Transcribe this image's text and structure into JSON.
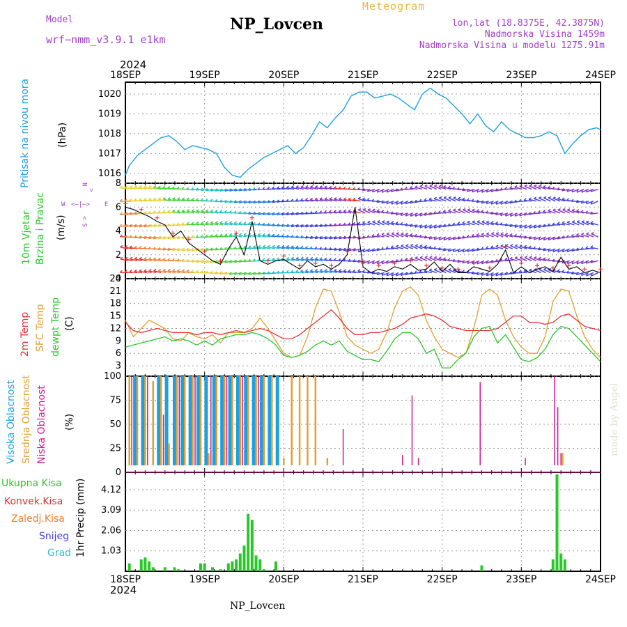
{
  "header": {
    "model_label": "Model",
    "model_name": "wrf−nmm_v3.9.1  e1km",
    "title": "NP_Lovcen",
    "meteogram_label": "Meteogram",
    "lonlat": "lon,lat (18.8375E, 42.3875N)",
    "elevation": "Nadmorska Visina 1459m",
    "model_elevation": "Nadmorska Visina u modelu 1275.91m",
    "year_top": "2024",
    "year_bottom": "2024",
    "footer": "NP_Lovcen",
    "watermark": "made by Angel"
  },
  "x_dates": [
    "18SEP",
    "19SEP",
    "20SEP",
    "21SEP",
    "22SEP",
    "23SEP",
    "24SEP"
  ],
  "panels": {
    "pressure": {
      "label": "Pritisak na nivou mora",
      "unit": "(hPa)"
    },
    "wind": {
      "label1": "10m Vjetar",
      "label2": "Brzina i Pravac",
      "unit": "(m/s)",
      "compass": {
        "n": "N",
        "s": "S",
        "e": "E",
        "w": "W"
      }
    },
    "temp": {
      "label_t2m": "2m Temp",
      "label_sfc": "SFC Temp",
      "label_dew": "dewpt Temp",
      "unit": "(C)"
    },
    "cloud": {
      "label_high": "Visoka Oblacnost",
      "label_mid": "Srednja Oblacnost",
      "label_low": "Niska Oblacnost",
      "unit": "(%)"
    },
    "precip": {
      "unit": "1hr Precip (mm)",
      "legend": [
        "Ukupna Kisa",
        "Konvek.Kisa",
        "Zaledj.Kisa",
        "Snijeg",
        "Grad"
      ]
    }
  },
  "colors": {
    "pressure": "#1ea0e0",
    "t2m": "#e83030",
    "sfc": "#e0a030",
    "dew": "#28c828",
    "high": "#1ea0e0",
    "mid": "#e0a030",
    "low": "#d01890",
    "precip_total": "#28c828",
    "precip_conv": "#e83030",
    "precip_frz": "#f08030",
    "precip_snow": "#4040e0",
    "precip_hail": "#30c0c0",
    "magenta": "#a040c8"
  },
  "chart_data": [
    {
      "type": "line",
      "title": "Pritisak na nivou mora",
      "ylabel": "(hPa)",
      "ylim": [
        1015.5,
        1020.6
      ],
      "yticks": [
        1016,
        1017,
        1018,
        1019,
        1020
      ],
      "x_days": [
        0,
        0.05,
        0.15,
        0.25,
        0.35,
        0.45,
        0.55,
        0.65,
        0.75,
        0.85,
        0.95,
        1.05,
        1.15,
        1.25,
        1.35,
        1.45,
        1.55,
        1.65,
        1.75,
        1.85,
        1.95,
        2.05,
        2.15,
        2.25,
        2.35,
        2.45,
        2.55,
        2.65,
        2.75,
        2.85,
        2.95,
        3.05,
        3.15,
        3.25,
        3.35,
        3.45,
        3.55,
        3.65,
        3.75,
        3.85,
        3.95,
        4.05,
        4.15,
        4.25,
        4.35,
        4.45,
        4.55,
        4.65,
        4.75,
        4.85,
        4.95,
        5.05,
        5.15,
        5.25,
        5.35,
        5.45,
        5.55,
        5.65,
        5.75,
        5.85,
        5.95,
        6.0
      ],
      "series": [
        {
          "values": [
            1015.9,
            1016.4,
            1016.9,
            1017.2,
            1017.5,
            1017.8,
            1017.9,
            1017.6,
            1017.2,
            1017.4,
            1017.3,
            1017.2,
            1017.0,
            1016.3,
            1015.9,
            1015.8,
            1016.2,
            1016.5,
            1016.8,
            1017.0,
            1017.2,
            1017.4,
            1017.0,
            1017.3,
            1017.9,
            1018.6,
            1018.3,
            1018.8,
            1019.2,
            1019.9,
            1020.1,
            1020.1,
            1019.8,
            1019.9,
            1020.0,
            1019.8,
            1019.5,
            1019.2,
            1020.0,
            1020.3,
            1020.0,
            1019.8,
            1019.4,
            1019.0,
            1018.5,
            1019.0,
            1018.4,
            1018.1,
            1018.6,
            1018.2,
            1018.0,
            1017.8,
            1017.8,
            1017.9,
            1018.1,
            1017.9,
            1017.0,
            1017.5,
            1017.9,
            1018.2,
            1018.3,
            1018.2
          ]
        }
      ]
    },
    {
      "type": "line",
      "title": "10m Vjetar Brzina i Pravac",
      "ylabel": "(m/s)",
      "ylim": [
        0,
        8
      ],
      "yticks": [
        0,
        2,
        4,
        6,
        8
      ],
      "x_days": [
        0,
        0.1,
        0.2,
        0.3,
        0.4,
        0.5,
        0.6,
        0.7,
        0.8,
        0.9,
        1.0,
        1.1,
        1.2,
        1.3,
        1.4,
        1.5,
        1.6,
        1.7,
        1.8,
        1.9,
        2.0,
        2.1,
        2.2,
        2.3,
        2.4,
        2.5,
        2.6,
        2.7,
        2.8,
        2.9,
        3.0,
        3.1,
        3.2,
        3.3,
        3.4,
        3.5,
        3.6,
        3.7,
        3.8,
        3.9,
        4.0,
        4.1,
        4.2,
        4.3,
        4.4,
        4.5,
        4.6,
        4.7,
        4.8,
        4.9,
        5.0,
        5.1,
        5.2,
        5.3,
        5.4,
        5.5,
        5.6,
        5.7,
        5.8,
        5.9,
        6.0
      ],
      "series": [
        {
          "name": "speed",
          "values": [
            6.0,
            5.8,
            5.5,
            5.2,
            4.8,
            4.5,
            3.5,
            4.0,
            3.0,
            2.5,
            2.0,
            1.5,
            1.2,
            2.5,
            3.5,
            2.0,
            4.8,
            1.5,
            1.2,
            1.5,
            1.6,
            1.2,
            0.8,
            1.5,
            1.0,
            1.2,
            0.8,
            1.2,
            2.0,
            6.0,
            1.0,
            0.5,
            0.8,
            0.6,
            1.0,
            0.8,
            1.2,
            0.7,
            0.8,
            1.4,
            0.6,
            1.2,
            0.5,
            0.5,
            1.0,
            0.8,
            0.6,
            1.2,
            2.4,
            0.5,
            1.0,
            0.5,
            0.8,
            1.0,
            0.6,
            1.8,
            0.8,
            1.0,
            0.5,
            0.7,
            0.5
          ]
        }
      ]
    },
    {
      "type": "line",
      "title": "2m Temp / SFC Temp / dewpt Temp",
      "ylabel": "(C)",
      "ylim": [
        0.5,
        24
      ],
      "yticks": [
        3,
        6,
        9,
        12,
        15,
        18,
        21,
        24
      ],
      "x_days": [
        0,
        0.1,
        0.2,
        0.3,
        0.4,
        0.5,
        0.6,
        0.7,
        0.8,
        0.9,
        1.0,
        1.1,
        1.2,
        1.3,
        1.4,
        1.5,
        1.6,
        1.7,
        1.8,
        1.9,
        2.0,
        2.1,
        2.2,
        2.3,
        2.4,
        2.5,
        2.6,
        2.7,
        2.8,
        2.9,
        3.0,
        3.1,
        3.2,
        3.3,
        3.4,
        3.5,
        3.6,
        3.7,
        3.8,
        3.9,
        4.0,
        4.1,
        4.2,
        4.3,
        4.4,
        4.5,
        4.6,
        4.7,
        4.8,
        4.9,
        5.0,
        5.1,
        5.2,
        5.3,
        5.4,
        5.5,
        5.6,
        5.7,
        5.8,
        5.9,
        6.0
      ],
      "series": [
        {
          "name": "2m Temp",
          "values": [
            13.5,
            11.5,
            11.0,
            11.5,
            12.0,
            11.5,
            11.0,
            11.0,
            11.0,
            10.5,
            11.0,
            11.0,
            10.5,
            11.0,
            11.5,
            11.0,
            11.5,
            12.0,
            11.5,
            10.5,
            9.5,
            9.5,
            10.5,
            12.0,
            13.5,
            15.0,
            16.5,
            14.5,
            12.0,
            10.5,
            10.5,
            11.0,
            11.0,
            11.5,
            12.0,
            13.0,
            14.5,
            15.0,
            15.5,
            15.0,
            14.0,
            12.5,
            12.0,
            11.5,
            11.5,
            11.5,
            11.5,
            12.0,
            13.5,
            15.0,
            15.0,
            13.5,
            13.5,
            13.0,
            13.5,
            15.0,
            15.5,
            14.0,
            12.5,
            12.0,
            11.5
          ]
        },
        {
          "name": "SFC Temp",
          "values": [
            14.0,
            10.0,
            12.0,
            14.0,
            13.0,
            12.0,
            9.5,
            9.0,
            11.0,
            10.0,
            9.5,
            10.5,
            8.5,
            11.0,
            11.0,
            11.0,
            12.0,
            14.5,
            12.0,
            9.0,
            6.0,
            5.0,
            5.5,
            10.0,
            17.0,
            21.5,
            21.0,
            16.0,
            10.0,
            8.0,
            7.0,
            6.0,
            7.0,
            11.0,
            17.0,
            21.0,
            22.0,
            20.0,
            14.0,
            10.0,
            7.0,
            6.0,
            5.0,
            6.0,
            12.0,
            20.0,
            21.5,
            20.0,
            14.0,
            10.0,
            7.5,
            6.0,
            6.0,
            10.0,
            18.5,
            21.5,
            21.0,
            15.0,
            10.0,
            7.0,
            5.0
          ]
        },
        {
          "name": "dewpt Temp",
          "values": [
            7.5,
            8.0,
            8.5,
            9.0,
            9.5,
            10.0,
            9.0,
            9.5,
            9.0,
            8.0,
            9.0,
            8.0,
            9.5,
            10.0,
            10.5,
            10.5,
            11.0,
            10.5,
            9.5,
            8.0,
            5.5,
            5.0,
            5.5,
            6.5,
            8.0,
            9.0,
            8.0,
            9.0,
            6.5,
            5.5,
            4.5,
            4.5,
            4.0,
            6.5,
            9.5,
            11.0,
            11.0,
            9.5,
            6.0,
            7.0,
            2.5,
            2.5,
            4.5,
            6.0,
            10.0,
            12.0,
            12.5,
            8.5,
            10.5,
            7.5,
            4.5,
            4.0,
            5.0,
            7.0,
            10.5,
            12.5,
            12.0,
            10.0,
            8.0,
            6.0,
            4.0
          ]
        }
      ]
    },
    {
      "type": "bar",
      "title": "Visoka / Srednja / Niska Oblacnost",
      "ylabel": "(%)",
      "ylim": [
        0,
        100
      ],
      "yticks": [
        0,
        25,
        50,
        75,
        100
      ],
      "series": [
        {
          "name": "Visoka Oblacnost",
          "x_days": [
            0.12,
            0.22,
            0.42,
            0.52,
            0.62,
            0.72,
            0.82,
            0.92,
            1.02,
            1.12,
            1.22,
            1.32,
            1.42,
            1.52,
            1.62,
            1.72,
            1.82,
            1.92,
            5.4,
            5.55
          ],
          "values": [
            100,
            100,
            100,
            100,
            100,
            100,
            100,
            100,
            100,
            100,
            100,
            100,
            100,
            100,
            100,
            100,
            100,
            100,
            2,
            2
          ]
        },
        {
          "name": "Srednja Oblacnost",
          "x_days": [
            0.05,
            0.15,
            0.25,
            0.35,
            0.45,
            0.55,
            0.65,
            0.75,
            0.85,
            0.95,
            1.05,
            1.15,
            1.25,
            1.35,
            1.45,
            1.55,
            1.65,
            1.75,
            1.85,
            2.0,
            2.1,
            2.2,
            2.3,
            2.4,
            2.55,
            5.52
          ],
          "values": [
            100,
            100,
            100,
            95,
            100,
            30,
            100,
            100,
            100,
            100,
            20,
            100,
            100,
            100,
            100,
            100,
            100,
            100,
            100,
            15,
            100,
            100,
            100,
            100,
            15,
            20
          ]
        },
        {
          "name": "Niska Oblacnost",
          "x_days": [
            0.08,
            0.28,
            0.48,
            0.68,
            0.88,
            1.08,
            1.28,
            1.48,
            1.68,
            2.55,
            2.62,
            2.75,
            3.5,
            3.62,
            3.7,
            4.48,
            5.05,
            5.42,
            5.46,
            5.5
          ],
          "values": [
            100,
            100,
            60,
            100,
            100,
            100,
            100,
            100,
            100,
            5,
            8,
            45,
            18,
            80,
            15,
            94,
            15,
            100,
            68,
            20
          ]
        }
      ]
    },
    {
      "type": "bar",
      "title": "1hr Precip",
      "ylabel": "1hr Precip (mm)",
      "ylim": [
        0,
        5.0
      ],
      "yticks": [
        1.03,
        2.06,
        3.09,
        4.12
      ],
      "x_days": [
        0.05,
        0.2,
        0.25,
        0.3,
        0.35,
        0.5,
        0.62,
        0.67,
        0.95,
        1.0,
        1.1,
        1.2,
        1.3,
        1.35,
        1.4,
        1.45,
        1.5,
        1.55,
        1.6,
        1.65,
        1.7,
        1.75,
        1.9,
        4.5,
        5.4,
        5.45,
        5.5,
        5.55
      ],
      "series": [
        {
          "name": "Ukupna Kisa",
          "values": [
            0.4,
            0.6,
            0.7,
            0.5,
            0.2,
            0.2,
            0.2,
            0.1,
            0.4,
            0.4,
            0.2,
            0.1,
            0.4,
            0.5,
            0.6,
            0.9,
            1.3,
            2.9,
            2.6,
            0.8,
            0.6,
            0.1,
            0.5,
            0.3,
            0.6,
            4.9,
            0.9,
            0.6
          ]
        }
      ]
    }
  ]
}
